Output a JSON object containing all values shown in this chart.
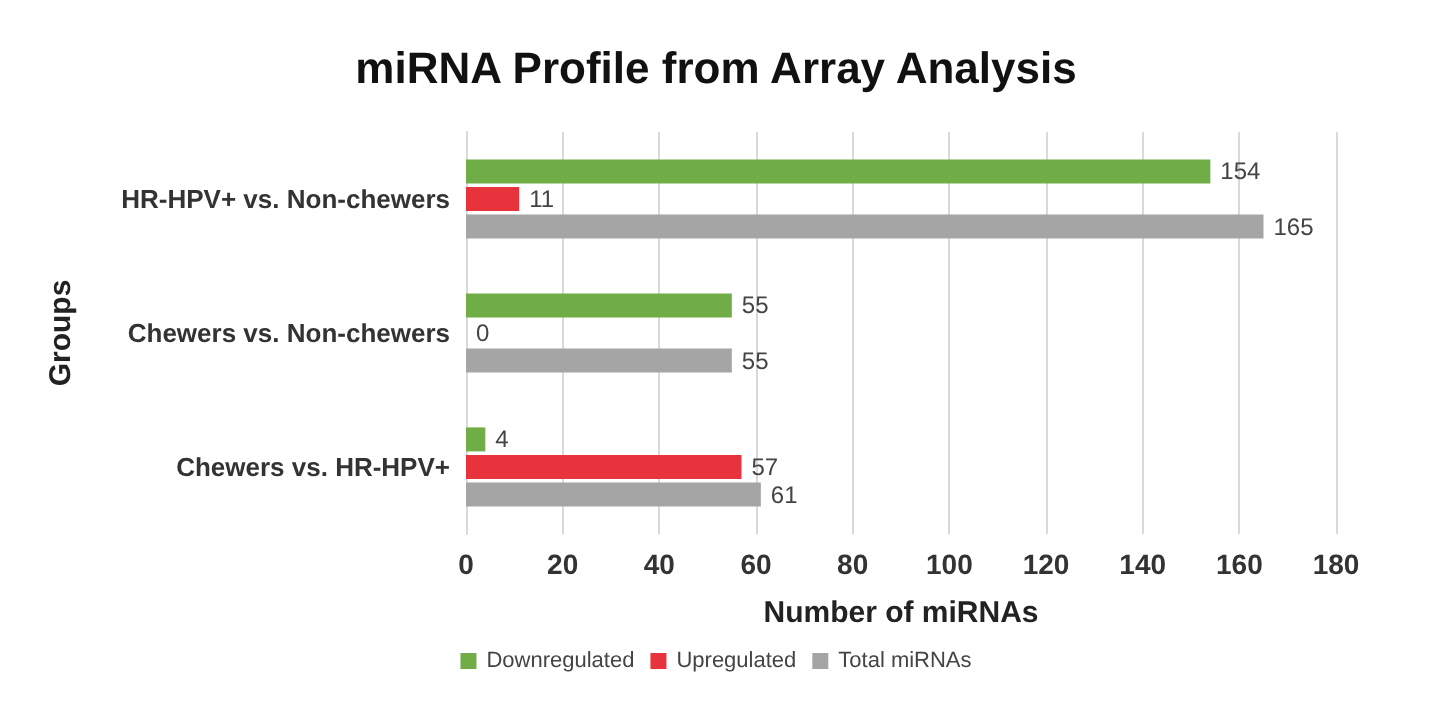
{
  "chart_data": {
    "type": "bar",
    "orientation": "horizontal",
    "title": "miRNA Profile from Array Analysis",
    "xlabel": "Number of miRNAs",
    "ylabel": "Groups",
    "categories": [
      "HR-HPV+ vs. Non-chewers",
      "Chewers vs. Non-chewers",
      "Chewers vs. HR-HPV+"
    ],
    "series": [
      {
        "name": "Downregulated",
        "color": "#70ad47",
        "values": [
          154,
          55,
          4
        ]
      },
      {
        "name": "Upregulated",
        "color": "#e8323c",
        "values": [
          11,
          0,
          57
        ]
      },
      {
        "name": "Total miRNAs",
        "color": "#a5a5a5",
        "values": [
          165,
          55,
          61
        ]
      }
    ],
    "xlim": [
      0,
      180
    ],
    "xticks": [
      0,
      20,
      40,
      60,
      80,
      100,
      120,
      140,
      160,
      180
    ],
    "grid": "x",
    "legend": "bottom",
    "data_labels": true
  }
}
